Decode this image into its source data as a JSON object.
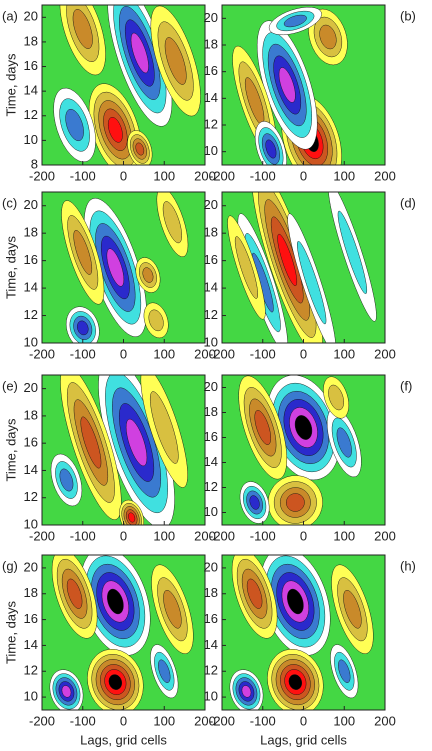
{
  "chart_data": [
    {
      "type": "contour",
      "label": "(a)",
      "ylabel": "Time, days",
      "xlim": [
        -200,
        200
      ],
      "ylim": [
        8,
        21
      ],
      "xticks": [
        -200,
        -100,
        0,
        100,
        200
      ],
      "yticks": [
        8,
        10,
        12,
        14,
        16,
        18,
        20
      ]
    },
    {
      "type": "contour",
      "label": "(b)",
      "xlim": [
        -200,
        200
      ],
      "ylim": [
        9,
        21
      ],
      "xticks": [
        -200,
        -100,
        0,
        100,
        200
      ],
      "yticks": [
        10,
        12,
        14,
        16,
        18,
        20
      ]
    },
    {
      "type": "contour",
      "label": "(c)",
      "ylabel": "Time, days",
      "xlim": [
        -200,
        200
      ],
      "ylim": [
        10,
        21
      ],
      "xticks": [
        -200,
        -100,
        0,
        100,
        200
      ],
      "yticks": [
        10,
        12,
        14,
        16,
        18,
        20
      ]
    },
    {
      "type": "contour",
      "label": "(d)",
      "xlim": [
        -200,
        200
      ],
      "ylim": [
        10,
        21
      ],
      "xticks": [
        -200,
        -100,
        0,
        100,
        200
      ],
      "yticks": [
        10,
        12,
        14,
        16,
        18,
        20
      ]
    },
    {
      "type": "contour",
      "label": "(e)",
      "ylabel": "Time, days",
      "xlim": [
        -200,
        200
      ],
      "ylim": [
        10,
        21
      ],
      "xticks": [
        -200,
        -100,
        0,
        100,
        200
      ],
      "yticks": [
        10,
        12,
        14,
        16,
        18,
        20
      ]
    },
    {
      "type": "contour",
      "label": "(f)",
      "xlim": [
        -200,
        200
      ],
      "ylim": [
        9,
        21
      ],
      "xticks": [
        -200,
        -100,
        0,
        100,
        200
      ],
      "yticks": [
        10,
        12,
        14,
        16,
        18,
        20
      ]
    },
    {
      "type": "contour",
      "label": "(g)",
      "ylabel": "Time, days",
      "xlabel": "Lags, grid cells",
      "xlim": [
        -200,
        200
      ],
      "ylim": [
        9,
        21
      ],
      "xticks": [
        -200,
        -100,
        0,
        100,
        200
      ],
      "yticks": [
        10,
        12,
        14,
        16,
        18,
        20
      ]
    },
    {
      "type": "contour",
      "label": "(h)",
      "xlabel": "Lags, grid cells",
      "xlim": [
        -200,
        200
      ],
      "ylim": [
        9,
        21
      ],
      "xticks": [
        -200,
        -100,
        0,
        100,
        200
      ],
      "yticks": [
        10,
        12,
        14,
        16,
        18,
        20
      ]
    }
  ]
}
